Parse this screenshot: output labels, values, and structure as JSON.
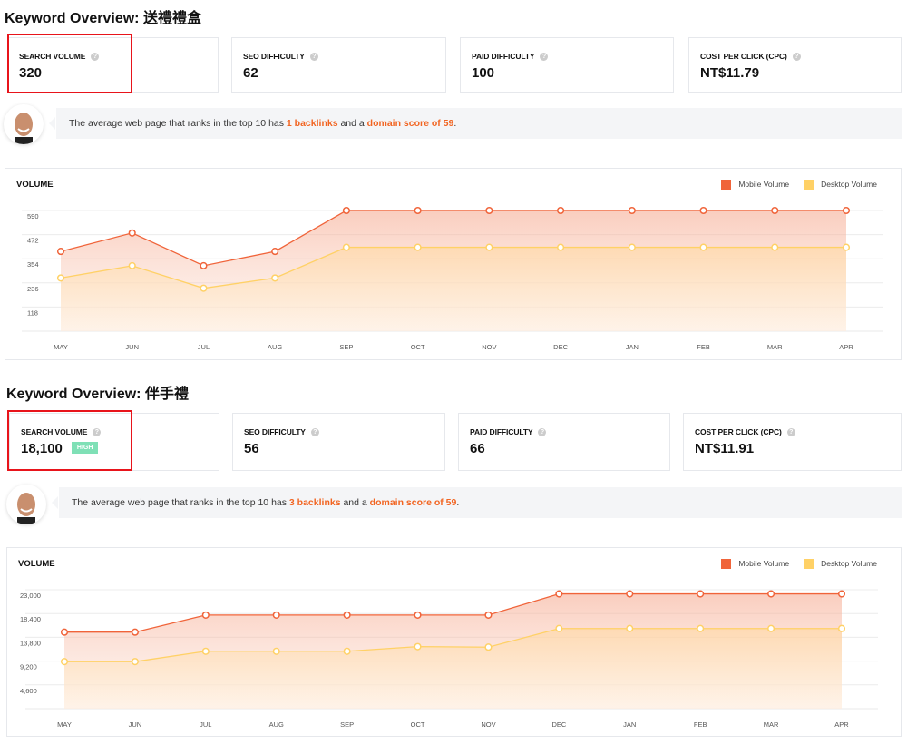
{
  "sections": [
    {
      "title": "Keyword Overview: 送禮禮盒",
      "cards": [
        {
          "label": "SEARCH VOLUME",
          "value": "320"
        },
        {
          "label": "SEO DIFFICULTY",
          "value": "62"
        },
        {
          "label": "PAID DIFFICULTY",
          "value": "100"
        },
        {
          "label": "COST PER CLICK (CPC)",
          "value": "NT$11.79"
        }
      ],
      "insight": {
        "pre": "The average web page that ranks in the top 10 has ",
        "backlinks": "1 backlinks",
        "mid": " and a ",
        "domain": "domain score of 59",
        "post": "."
      },
      "chart_title": "VOLUME"
    },
    {
      "title": "Keyword Overview: 伴手禮",
      "cards": [
        {
          "label": "SEARCH VOLUME",
          "value": "18,100",
          "badge": "HIGH"
        },
        {
          "label": "SEO DIFFICULTY",
          "value": "56"
        },
        {
          "label": "PAID DIFFICULTY",
          "value": "66"
        },
        {
          "label": "COST PER CLICK (CPC)",
          "value": "NT$11.91"
        }
      ],
      "insight": {
        "pre": "The average web page that ranks in the top 10 has ",
        "backlinks": "3 backlinks",
        "mid": " and a ",
        "domain": "domain score of 59",
        "post": "."
      },
      "chart_title": "VOLUME"
    }
  ],
  "help_icon": "?",
  "colors": {
    "mobile": "#f0643a",
    "desktop": "#ffd166",
    "highlight": "#f26522",
    "badge": "#7fe0b6",
    "callout_box": "#e8141b"
  },
  "chart_data": [
    {
      "type": "area",
      "title": "VOLUME",
      "categories": [
        "MAY",
        "JUN",
        "JUL",
        "AUG",
        "SEP",
        "OCT",
        "NOV",
        "DEC",
        "JAN",
        "FEB",
        "MAR",
        "APR"
      ],
      "yticks": [
        "118",
        "236",
        "354",
        "472",
        "590"
      ],
      "ytick_values": [
        118,
        236,
        354,
        472,
        590
      ],
      "ylim": [
        0,
        590
      ],
      "grid": true,
      "legend": "top-right",
      "series": [
        {
          "name": "Mobile Volume",
          "values": [
            390,
            480,
            320,
            390,
            590,
            590,
            590,
            590,
            590,
            590,
            590,
            590
          ]
        },
        {
          "name": "Desktop Volume",
          "values": [
            260,
            320,
            210,
            260,
            410,
            410,
            410,
            410,
            410,
            410,
            410,
            410
          ]
        }
      ]
    },
    {
      "type": "area",
      "title": "VOLUME",
      "categories": [
        "MAY",
        "JUN",
        "JUL",
        "AUG",
        "SEP",
        "OCT",
        "NOV",
        "DEC",
        "JAN",
        "FEB",
        "MAR",
        "APR"
      ],
      "yticks": [
        "4,600",
        "9,200",
        "13,800",
        "18,400",
        "23,000"
      ],
      "ytick_values": [
        4600,
        9200,
        13800,
        18400,
        23000
      ],
      "ylim": [
        0,
        23000
      ],
      "grid": true,
      "legend": "top-right",
      "series": [
        {
          "name": "Mobile Volume",
          "values": [
            14800,
            14800,
            18100,
            18100,
            18100,
            18100,
            18100,
            22200,
            22200,
            22200,
            22200,
            22200
          ]
        },
        {
          "name": "Desktop Volume",
          "values": [
            9100,
            9100,
            11100,
            11100,
            11100,
            12000,
            11900,
            15500,
            15500,
            15500,
            15500,
            15500
          ]
        }
      ]
    }
  ]
}
